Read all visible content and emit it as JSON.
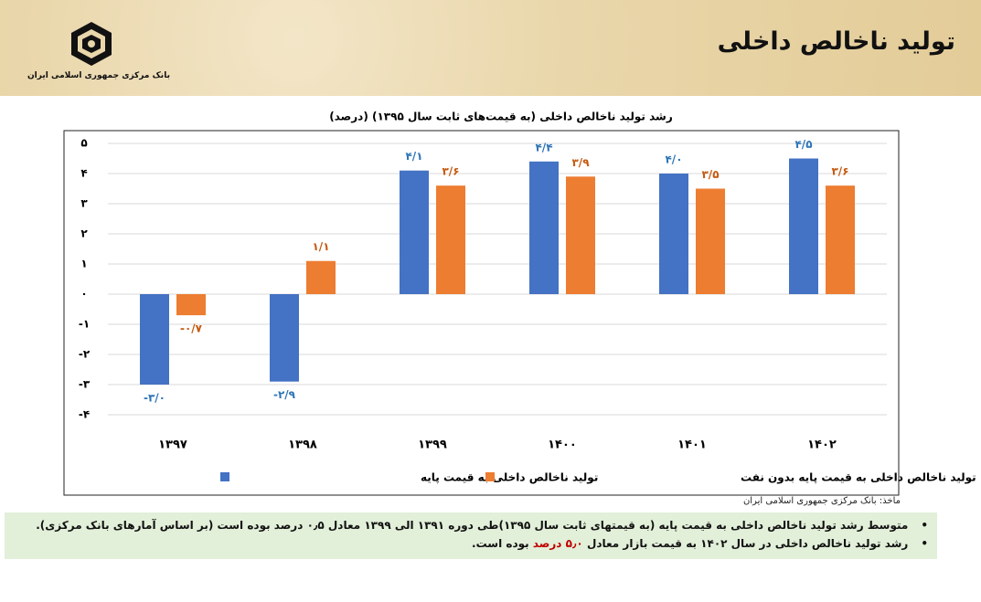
{
  "header": {
    "title": "تولید ناخالص داخلی",
    "logo_text": "بانک مرکزی جمهوری اسلامی ایران"
  },
  "chart_data": {
    "type": "bar",
    "title": "رشد تولید ناخالص داخلی (به قیمت‌های ثابت سال ۱۳۹۵) (درصد)",
    "categories": [
      "۱۳۹۷",
      "۱۳۹۸",
      "۱۳۹۹",
      "۱۴۰۰",
      "۱۴۰۱",
      "۱۴۰۲"
    ],
    "series": [
      {
        "name": "تولید ناخالص داخلی به قیمت پایه",
        "color": "#4472c4",
        "values": [
          -3.0,
          -2.9,
          4.1,
          4.4,
          4.0,
          4.5
        ],
        "value_labels": [
          "-۳/۰",
          "-۲/۹",
          "۴/۱",
          "۴/۴",
          "۴/۰",
          "۴/۵"
        ],
        "label_color": "#2e75b6"
      },
      {
        "name": "تولید ناخالص داخلی به قیمت پایه بدون نفت",
        "color": "#ed7d31",
        "values": [
          -0.7,
          1.1,
          3.6,
          3.9,
          3.5,
          3.6
        ],
        "value_labels": [
          "-۰/۷",
          "۱/۱",
          "۳/۶",
          "۳/۹",
          "۳/۵",
          "۳/۶"
        ],
        "label_color": "#c55a11"
      }
    ],
    "ylim": [
      -4,
      5
    ],
    "yticks": [
      {
        "value": -4,
        "label": "-۴"
      },
      {
        "value": -3,
        "label": "-۳"
      },
      {
        "value": -2,
        "label": "-۲"
      },
      {
        "value": -1,
        "label": "-۱"
      },
      {
        "value": 0,
        "label": "۰"
      },
      {
        "value": 1,
        "label": "۱"
      },
      {
        "value": 2,
        "label": "۲"
      },
      {
        "value": 3,
        "label": "۳"
      },
      {
        "value": 4,
        "label": "۴"
      },
      {
        "value": 5,
        "label": "۵"
      }
    ],
    "grid": true,
    "legend": "bottom"
  },
  "source": "ماخذ: بانک مرکزی جمهوری اسلامی ایران",
  "notes": [
    {
      "text": "متوسط رشد تولید ناخالص داخلی به قیمت پایه (به قیمتهای ثابت سال ۱۳۹۵)طی دوره ۱۳۹۱ الی ۱۳۹۹ معادل ۰٫۵ درصد بوده است (بر اساس آمارهای بانک مرکزی)."
    },
    {
      "text": "رشد تولید ناخالص داخلی در سال ۱۴۰۲ به قیمت بازار معادل",
      "highlight": "۵٫۰ درصد",
      "text_after": "بوده است."
    }
  ]
}
